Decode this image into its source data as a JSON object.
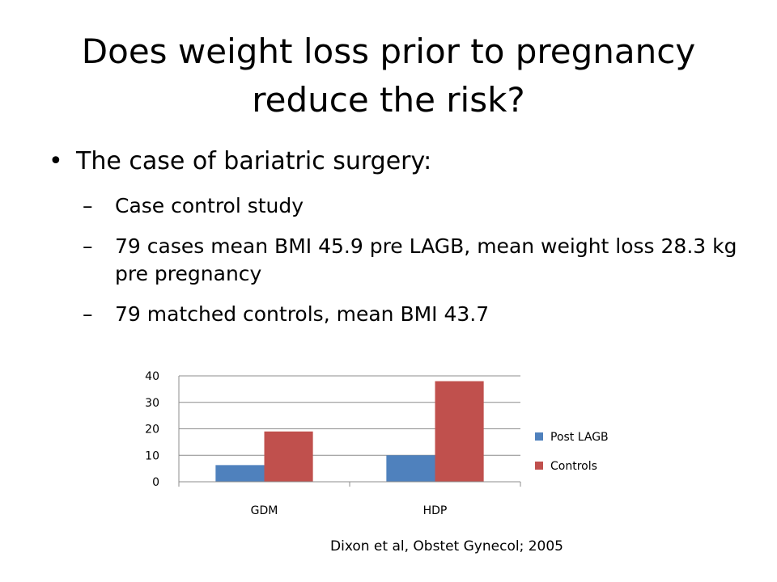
{
  "slide": {
    "title": "Does weight loss prior to pregnancy reduce the risk?",
    "bullet": "The case of bariatric surgery:",
    "sub_bullets": [
      "Case control study",
      "79 cases mean BMI 45.9 pre LAGB, mean weight loss 28.3 kg pre pregnancy",
      "79 matched controls, mean BMI 43.7"
    ],
    "bullet_glyph": "•",
    "dash_glyph": "–",
    "citation": "Dixon et al, Obstet Gynecol; 2005"
  },
  "chart_data": {
    "type": "bar",
    "categories": [
      "GDM",
      "HDP"
    ],
    "series": [
      {
        "name": "Post LAGB",
        "values": [
          6.3,
          10
        ],
        "color": "#4f81bd"
      },
      {
        "name": "Controls",
        "values": [
          19,
          38
        ],
        "color": "#c0504d"
      }
    ],
    "ylim": [
      0,
      40
    ],
    "yticks": [
      0,
      10,
      20,
      30,
      40
    ],
    "grid": true,
    "legend": "right"
  }
}
